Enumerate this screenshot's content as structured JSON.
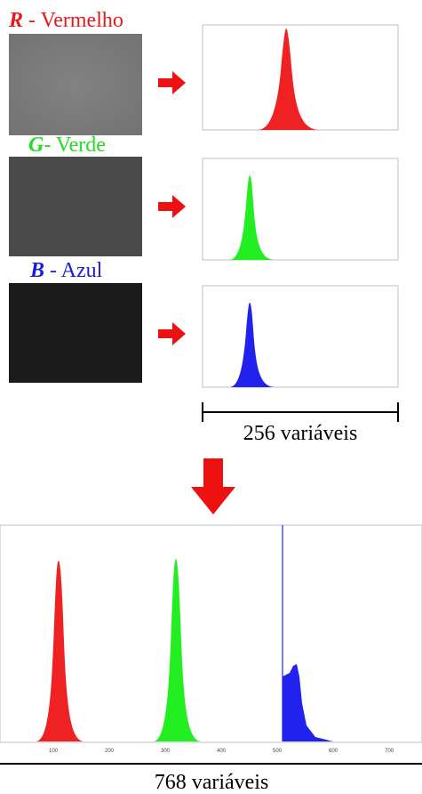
{
  "channels": [
    {
      "letter": "R",
      "name": " - Vermelho"
    },
    {
      "letter": "G",
      "name": "- Verde"
    },
    {
      "letter": "B",
      "name": " - Azul"
    }
  ],
  "small_caption": "256 variáveis",
  "big_caption": "768 variáveis",
  "big_axis_ticks": [
    "100",
    "200",
    "300",
    "400",
    "500",
    "600",
    "700"
  ]
}
